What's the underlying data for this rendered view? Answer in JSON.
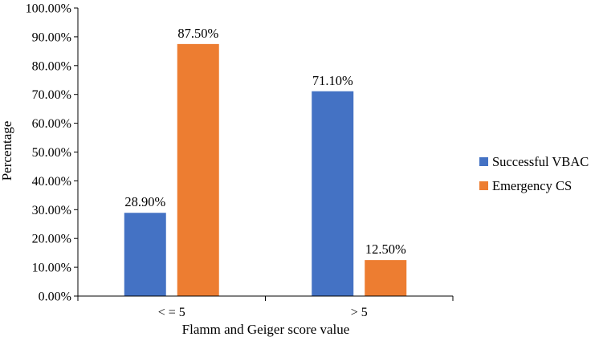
{
  "chart_data": {
    "type": "bar",
    "categories": [
      "< = 5",
      "> 5"
    ],
    "series": [
      {
        "name": "Successful VBAC",
        "values": [
          28.9,
          71.1
        ],
        "labels": [
          "28.90%",
          "71.10%"
        ],
        "color": "#4472C4"
      },
      {
        "name": "Emergency CS",
        "values": [
          87.5,
          12.5
        ],
        "labels": [
          "87.50%",
          "12.50%"
        ],
        "color": "#ED7D31"
      }
    ],
    "xlabel": "Flamm and Geiger score value",
    "ylabel": "Percentage",
    "ylim": [
      0,
      100
    ],
    "ytick_step": 10,
    "ytick_labels": [
      "0.00%",
      "10.00%",
      "20.00%",
      "30.00%",
      "40.00%",
      "50.00%",
      "60.00%",
      "70.00%",
      "80.00%",
      "90.00%",
      "100.00%"
    ],
    "grid": false,
    "legend_position": "right"
  }
}
